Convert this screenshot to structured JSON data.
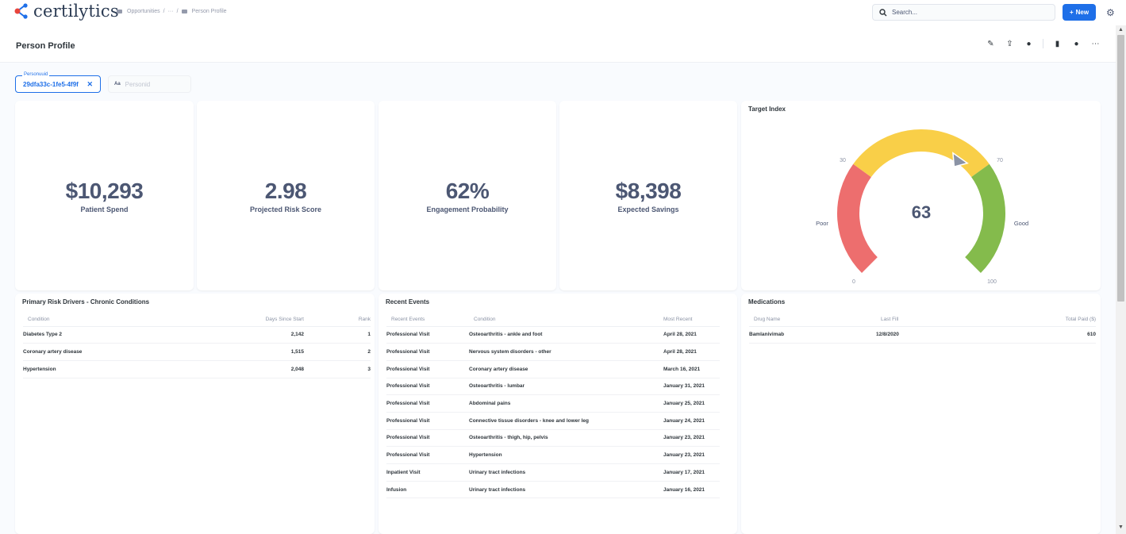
{
  "brand": {
    "name": "certilytics",
    "accent": "#1e6fe8"
  },
  "breadcrumb": {
    "items": [
      "Opportunities",
      "···",
      "Person Profile"
    ],
    "sep": "/"
  },
  "search": {
    "placeholder": "Search..."
  },
  "toolbar": {
    "new_label": "New"
  },
  "page": {
    "title": "Person Profile"
  },
  "filters": {
    "personuuid": {
      "label": "Personuuid",
      "value": "29dfa33c-1fe5-4f9f"
    },
    "personid": {
      "badge": "Aa",
      "placeholder": "Personid"
    }
  },
  "scalars": [
    {
      "value": "$10,293",
      "label": "Patient Spend"
    },
    {
      "value": "2.98",
      "label": "Projected Risk Score"
    },
    {
      "value": "62%",
      "label": "Engagement Probability"
    },
    {
      "value": "$8,398",
      "label": "Expected Savings"
    }
  ],
  "gauge": {
    "title": "Target Index",
    "value": "63",
    "value_num": 63,
    "min": 0,
    "max": 100,
    "segments": [
      {
        "from": 0,
        "to": 30,
        "color": "#ed6e6e",
        "label": "Poor"
      },
      {
        "from": 30,
        "to": 70,
        "color": "#f9cf48",
        "label": ""
      },
      {
        "from": 70,
        "to": 100,
        "color": "#84bb4c",
        "label": "Good"
      }
    ],
    "tick_labels": {
      "min": "0",
      "t30": "30",
      "t70": "70",
      "max": "100",
      "poor": "Poor",
      "good": "Good"
    }
  },
  "risk_drivers": {
    "title": "Primary Risk Drivers - Chronic Conditions",
    "columns": [
      "Condition",
      "Days Since Start",
      "Rank"
    ],
    "rows": [
      [
        "Diabetes Type 2",
        "2,142",
        "1"
      ],
      [
        "Coronary artery disease",
        "1,515",
        "2"
      ],
      [
        "Hypertension",
        "2,048",
        "3"
      ]
    ]
  },
  "recent_events": {
    "title": "Recent Events",
    "columns": [
      "Recent Events",
      "Condition",
      "Most Recent"
    ],
    "rows": [
      [
        "Professional Visit",
        "Osteoarthritis - ankle and foot",
        "April 28, 2021"
      ],
      [
        "Professional Visit",
        "Nervous system disorders - other",
        "April 28, 2021"
      ],
      [
        "Professional Visit",
        "Coronary artery disease",
        "March 16, 2021"
      ],
      [
        "Professional Visit",
        "Osteoarthritis - lumbar",
        "January 31, 2021"
      ],
      [
        "Professional Visit",
        "Abdominal pains",
        "January 25, 2021"
      ],
      [
        "Professional Visit",
        "Connective tissue disorders - knee and lower leg",
        "January 24, 2021"
      ],
      [
        "Professional Visit",
        "Osteoarthritis - thigh, hip, pelvis",
        "January 23, 2021"
      ],
      [
        "Professional Visit",
        "Hypertension",
        "January 23, 2021"
      ],
      [
        "Inpatient Visit",
        "Urinary tract infections",
        "January 17, 2021"
      ],
      [
        "Infusion",
        "Urinary tract infections",
        "January 16, 2021"
      ]
    ]
  },
  "medications": {
    "title": "Medications",
    "columns": [
      "Drug Name",
      "Last Fill",
      "Total Paid ($)"
    ],
    "rows": [
      [
        "Bamlanivimab",
        "12/8/2020",
        "610"
      ]
    ]
  }
}
